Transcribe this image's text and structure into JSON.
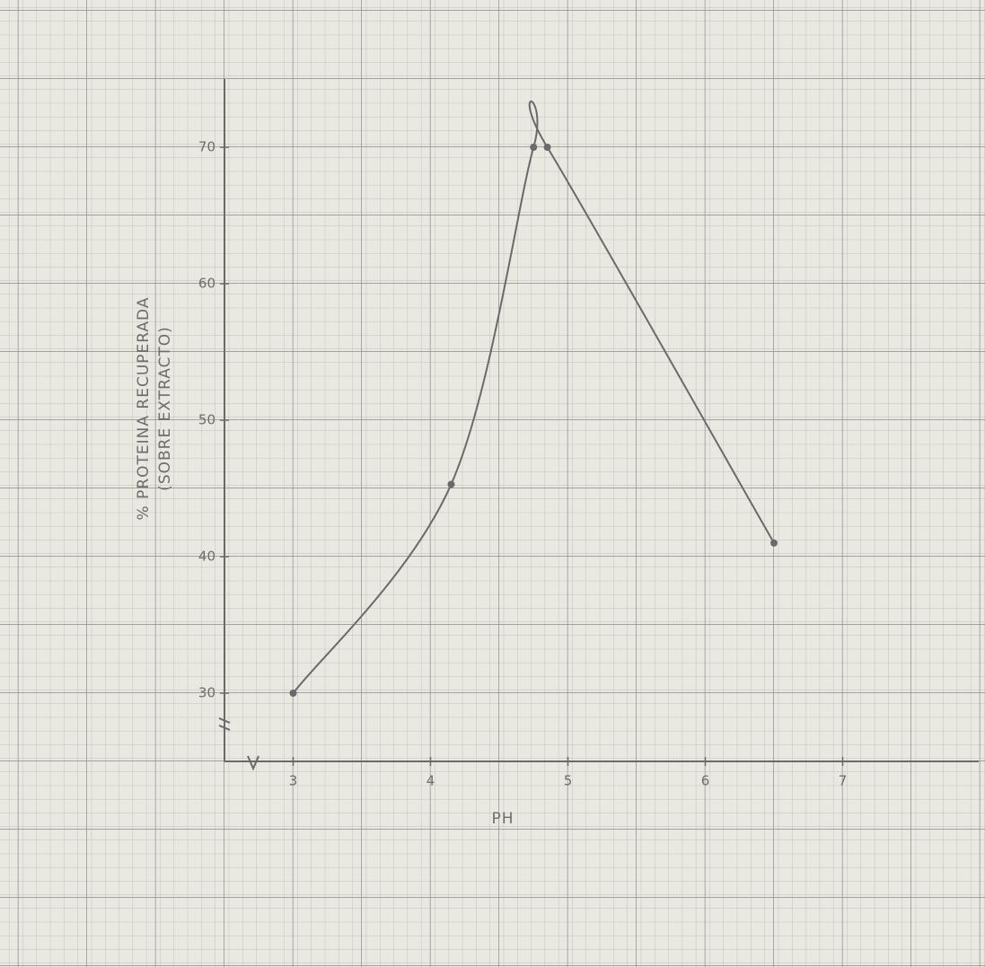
{
  "chart_data": {
    "type": "line",
    "x_label": "PH",
    "y_label": [
      "% PROTEINA RECUPERADA",
      "(SOBRE EXTRACTO)"
    ],
    "x": [
      3,
      4.15,
      4.75,
      4.85,
      6.5
    ],
    "series": [
      {
        "color": "#6a6a6a",
        "values": [
          30,
          45.3,
          70,
          70,
          41
        ]
      }
    ],
    "xlim": [
      2.5,
      8
    ],
    "ylim": [
      25,
      75
    ],
    "xticks": [
      3,
      4,
      5,
      6,
      7
    ],
    "yticks": [
      30,
      40,
      50,
      60,
      70
    ]
  }
}
